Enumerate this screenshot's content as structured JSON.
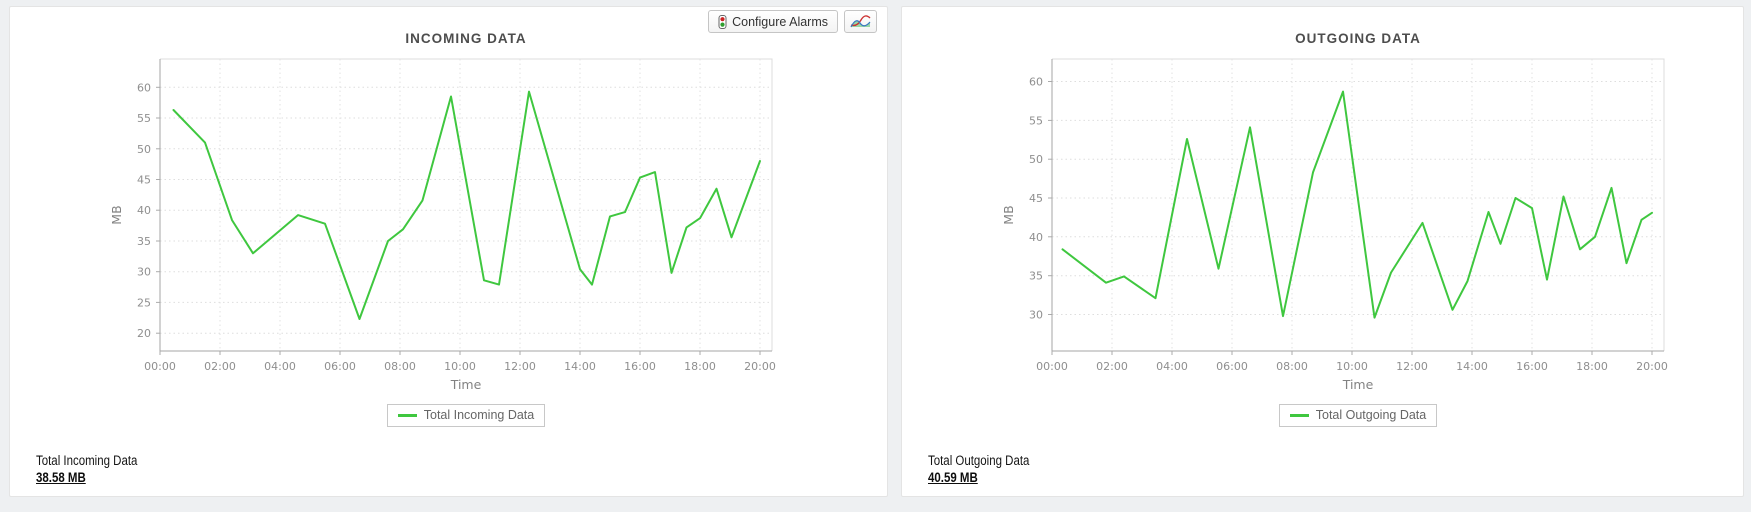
{
  "toolbar": {
    "configure_alarms_label": "Configure Alarms",
    "alarm_icon": "traffic-light",
    "chart_type_icon": "multi-series-line-chart"
  },
  "panels": [
    {
      "summary_label": "Total Incoming Data",
      "summary_value": "38.58 MB"
    },
    {
      "summary_label": "Total Outgoing Data",
      "summary_value": "40.59 MB"
    }
  ],
  "chart_data": [
    {
      "type": "line",
      "title": "INCOMING DATA",
      "xlabel": "Time",
      "ylabel": "MB",
      "legend": "Total Incoming Data",
      "legend_position": "bottom-center",
      "grid": true,
      "line_color": "#3fc73f",
      "x_ticks": [
        "00:00",
        "02:00",
        "04:00",
        "06:00",
        "08:00",
        "10:00",
        "12:00",
        "14:00",
        "16:00",
        "18:00",
        "20:00"
      ],
      "y_ticks": [
        20,
        25,
        30,
        35,
        40,
        45,
        50,
        55,
        60
      ],
      "x_range_hours": [
        0,
        20
      ],
      "y_axis_top_value": 64.6,
      "y_axis_bottom_value": 17.1,
      "points_format": "[hour_of_day, MB]",
      "points": [
        [
          0.45,
          56.3
        ],
        [
          1.5,
          51.0
        ],
        [
          2.4,
          38.4
        ],
        [
          3.1,
          33.0
        ],
        [
          4.6,
          39.2
        ],
        [
          5.5,
          37.8
        ],
        [
          6.65,
          22.3
        ],
        [
          7.6,
          35.0
        ],
        [
          8.1,
          36.9
        ],
        [
          8.75,
          41.6
        ],
        [
          9.7,
          58.5
        ],
        [
          10.8,
          28.6
        ],
        [
          11.3,
          27.9
        ],
        [
          12.3,
          59.3
        ],
        [
          14.0,
          30.4
        ],
        [
          14.4,
          27.9
        ],
        [
          15.0,
          39.0
        ],
        [
          15.5,
          39.7
        ],
        [
          16.0,
          45.3
        ],
        [
          16.5,
          46.2
        ],
        [
          17.05,
          29.8
        ],
        [
          17.55,
          37.2
        ],
        [
          18.0,
          38.7
        ],
        [
          18.55,
          43.5
        ],
        [
          19.05,
          35.6
        ],
        [
          19.5,
          41.5
        ],
        [
          20.0,
          48.0
        ]
      ]
    },
    {
      "type": "line",
      "title": "OUTGOING DATA",
      "xlabel": "Time",
      "ylabel": "MB",
      "legend": "Total Outgoing Data",
      "legend_position": "bottom-center",
      "grid": true,
      "line_color": "#3fc73f",
      "x_ticks": [
        "00:00",
        "02:00",
        "04:00",
        "06:00",
        "08:00",
        "10:00",
        "12:00",
        "14:00",
        "16:00",
        "18:00",
        "20:00"
      ],
      "y_ticks": [
        30,
        35,
        40,
        45,
        50,
        55,
        60
      ],
      "x_range_hours": [
        0,
        20
      ],
      "y_axis_top_value": 62.9,
      "y_axis_bottom_value": 25.3,
      "points_format": "[hour_of_day, MB]",
      "points": [
        [
          0.35,
          38.4
        ],
        [
          1.8,
          34.1
        ],
        [
          2.4,
          34.9
        ],
        [
          3.45,
          32.1
        ],
        [
          4.5,
          52.6
        ],
        [
          5.55,
          35.9
        ],
        [
          6.6,
          54.1
        ],
        [
          7.7,
          29.8
        ],
        [
          8.7,
          48.3
        ],
        [
          9.7,
          58.7
        ],
        [
          10.75,
          29.6
        ],
        [
          11.3,
          35.4
        ],
        [
          12.35,
          41.8
        ],
        [
          13.35,
          30.6
        ],
        [
          13.85,
          34.3
        ],
        [
          14.55,
          43.2
        ],
        [
          14.95,
          39.1
        ],
        [
          15.45,
          45.0
        ],
        [
          16.0,
          43.7
        ],
        [
          16.5,
          34.5
        ],
        [
          17.05,
          45.2
        ],
        [
          17.6,
          38.4
        ],
        [
          18.1,
          40.0
        ],
        [
          18.65,
          46.3
        ],
        [
          19.15,
          36.6
        ],
        [
          19.65,
          42.2
        ],
        [
          20.0,
          43.1
        ]
      ]
    }
  ]
}
